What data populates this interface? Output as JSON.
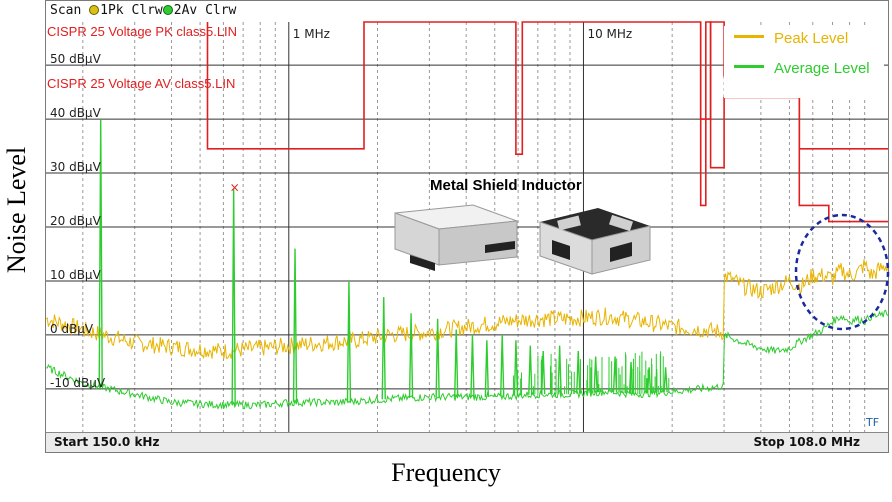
{
  "header": {
    "scan_label": "Scan",
    "trace1_label": "1Pk Clrw",
    "trace2_label": "2Av Clrw",
    "trace1_color": "#d9c016",
    "trace2_color": "#2ecc2e"
  },
  "limit_lines": {
    "pk_label": "CISPR 25 Voltage PK class5.LIN",
    "av_label": "CISPR 25 Voltage AV class5.LIN",
    "color": "#e02020"
  },
  "insert": {
    "title": "Metal Shield Inductor",
    "icons": [
      "inductor-open-icon",
      "inductor-shielded-icon"
    ]
  },
  "footer": {
    "start": "Start 150.0 kHz",
    "stop": "Stop 108.0 MHz",
    "corner_tag": "TF"
  },
  "chart_data": {
    "type": "line",
    "x_scale": "log",
    "xlim": [
      0.15,
      108
    ],
    "ylim": [
      -18,
      58
    ],
    "grid": true,
    "legend_position": "top-right",
    "xlabel": "Frequency",
    "ylabel": "Noise Level",
    "x_ticks": [
      {
        "v": 1,
        "label": "1 MHz"
      },
      {
        "v": 10,
        "label": "10 MHz"
      }
    ],
    "y_ticks": [
      {
        "v": 50,
        "label": "50 dBµV"
      },
      {
        "v": 40,
        "label": "40 dBµV"
      },
      {
        "v": 30,
        "label": "30 dBµV"
      },
      {
        "v": 20,
        "label": "20 dBµV"
      },
      {
        "v": 10,
        "label": "10 dBµV"
      },
      {
        "v": 0,
        "label": "0 dBµV"
      },
      {
        "v": -10,
        "label": "-10 dBµV"
      }
    ],
    "series": [
      {
        "name": "Peak Level",
        "color": "#e8b400",
        "x": [
          0.15,
          0.2,
          0.3,
          0.45,
          0.6,
          0.8,
          1.0,
          1.3,
          1.7,
          2.2,
          3.0,
          4.0,
          5.5,
          7.0,
          9.0,
          12.0,
          16.0,
          20.0,
          25.0,
          29.9,
          30.1,
          35.0,
          40.0,
          45.0,
          50.0,
          55.0,
          60.0,
          65.0,
          70.0,
          75.0,
          80.0,
          85.0,
          90.0,
          95.0,
          100.0,
          108.0
        ],
        "y": [
          3.0,
          1.0,
          -1.5,
          -2.5,
          -3.0,
          -2.5,
          -2.0,
          -1.5,
          -1.0,
          0.0,
          0.5,
          1.5,
          2.5,
          3.0,
          3.0,
          3.5,
          2.5,
          1.5,
          1.0,
          0.5,
          11.0,
          9.0,
          8.0,
          9.0,
          10.0,
          9.0,
          11.0,
          11.0,
          10.5,
          12.0,
          11.0,
          11.5,
          13.0,
          11.0,
          12.0,
          13.0
        ]
      },
      {
        "name": "Average Level",
        "color": "#2ecc2e",
        "x": [
          0.15,
          0.2,
          0.3,
          0.4,
          0.6,
          0.8,
          1.0,
          1.5,
          2.0,
          3.0,
          4.0,
          5.0,
          7.0,
          9.0,
          12.0,
          15.0,
          20.0,
          25.0,
          29.9,
          30.1,
          35.0,
          40.0,
          45.0,
          50.0,
          55.0,
          60.0,
          65.0,
          70.0,
          75.0,
          80.0,
          85.0,
          90.0,
          95.0,
          100.0,
          108.0
        ],
        "y": [
          -6.0,
          -9.0,
          -11.0,
          -12.5,
          -13.0,
          -13.0,
          -12.5,
          -12.5,
          -12.0,
          -11.5,
          -11.5,
          -11.5,
          -11.0,
          -11.0,
          -10.5,
          -11.0,
          -10.5,
          -10.0,
          -9.5,
          0.0,
          -1.5,
          -2.5,
          -3.0,
          -2.5,
          -1.0,
          0.0,
          1.0,
          2.5,
          3.5,
          2.5,
          3.0,
          2.5,
          3.5,
          3.5,
          4.0
        ]
      }
    ],
    "peak_markers": [
      {
        "x": 0.23,
        "y": 40
      },
      {
        "x": 0.65,
        "y": 27
      },
      {
        "x": 1.05,
        "y": 16
      },
      {
        "x": 1.6,
        "y": 10
      },
      {
        "x": 2.1,
        "y": 7
      },
      {
        "x": 2.6,
        "y": 4
      },
      {
        "x": 3.2,
        "y": 3
      },
      {
        "x": 3.7,
        "y": 1
      },
      {
        "x": 4.2,
        "y": 0
      },
      {
        "x": 4.7,
        "y": -1
      },
      {
        "x": 5.3,
        "y": 0
      },
      {
        "x": 5.9,
        "y": -1
      },
      {
        "x": 6.6,
        "y": -2
      },
      {
        "x": 7.3,
        "y": -3
      },
      {
        "x": 8.3,
        "y": -2
      },
      {
        "x": 9.6,
        "y": -3
      },
      {
        "x": 11.0,
        "y": -4
      },
      {
        "x": 12.8,
        "y": -4
      },
      {
        "x": 14.5,
        "y": -5
      },
      {
        "x": 16.7,
        "y": -6
      },
      {
        "x": 19.0,
        "y": -6
      }
    ],
    "marker_x": {
      "x": 0.65,
      "y": 27.3,
      "label": "×"
    },
    "limit_pk": {
      "color": "#e02020",
      "x": [
        0.53,
        0.53,
        1.8,
        1.8,
        5.9,
        5.9,
        6.2,
        6.2,
        25.0,
        25.0,
        26.0,
        26.0,
        27.0,
        27.0,
        30.0,
        30.0,
        54.0,
        54.0,
        108.0
      ],
      "y": [
        58,
        34.5,
        34.5,
        58,
        58,
        33.5,
        33.5,
        58,
        58,
        24,
        24,
        58,
        58,
        31,
        31,
        44,
        44,
        34.5,
        34.5
      ]
    },
    "limit_av": {
      "color": "#e02020",
      "x": [
        25.0,
        25.0,
        27.0,
        27.0,
        30.0,
        30.0,
        54.0,
        54.0,
        68.0,
        68.0,
        108.0
      ],
      "y": [
        58,
        40,
        40,
        58,
        58,
        48,
        48,
        24,
        24,
        21,
        21
      ]
    }
  }
}
